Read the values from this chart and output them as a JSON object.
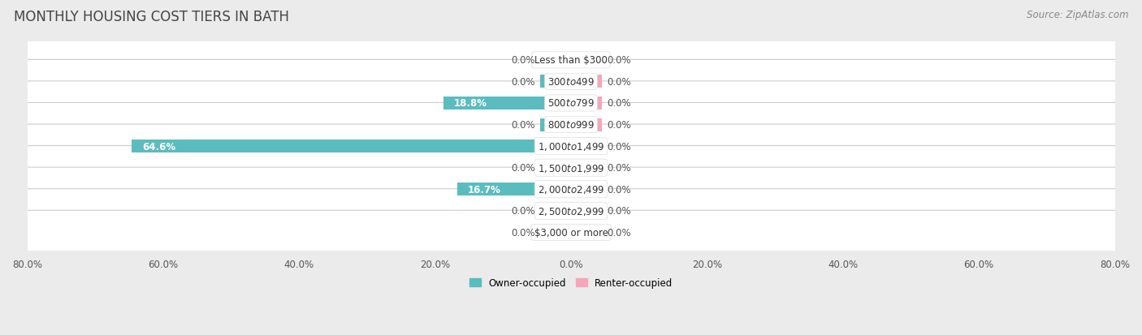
{
  "title": "MONTHLY HOUSING COST TIERS IN BATH",
  "source": "Source: ZipAtlas.com",
  "categories": [
    "Less than $300",
    "$300 to $499",
    "$500 to $799",
    "$800 to $999",
    "$1,000 to $1,499",
    "$1,500 to $1,999",
    "$2,000 to $2,499",
    "$2,500 to $2,999",
    "$3,000 or more"
  ],
  "owner_values": [
    0.0,
    0.0,
    18.8,
    0.0,
    64.6,
    0.0,
    16.7,
    0.0,
    0.0
  ],
  "renter_values": [
    0.0,
    0.0,
    0.0,
    0.0,
    0.0,
    0.0,
    0.0,
    0.0,
    0.0
  ],
  "owner_color": "#5bbcbf",
  "renter_color": "#f4a7b9",
  "background_color": "#ebebeb",
  "row_color": "#f5f5f5",
  "xlim": 80.0,
  "min_bar_width": 4.5,
  "owner_label": "Owner-occupied",
  "renter_label": "Renter-occupied",
  "title_fontsize": 12,
  "source_fontsize": 8.5,
  "label_fontsize": 8.5,
  "category_fontsize": 8.5,
  "axis_fontsize": 8.5,
  "value_label_color_dark": "#555555",
  "value_label_color_white": "#ffffff"
}
